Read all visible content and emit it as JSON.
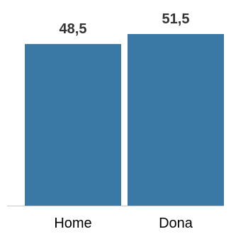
{
  "chart_data": {
    "type": "bar",
    "categories": [
      "Home",
      "Dona"
    ],
    "values": [
      48.5,
      51.5
    ],
    "value_labels": [
      "48,5",
      "51,5"
    ],
    "title": "",
    "xlabel": "",
    "ylabel": "",
    "ylim": [
      0,
      51.5
    ],
    "grid": false,
    "legend": "none",
    "bar_color": "#3a78a6",
    "axis_color": "#c8c8c8"
  }
}
